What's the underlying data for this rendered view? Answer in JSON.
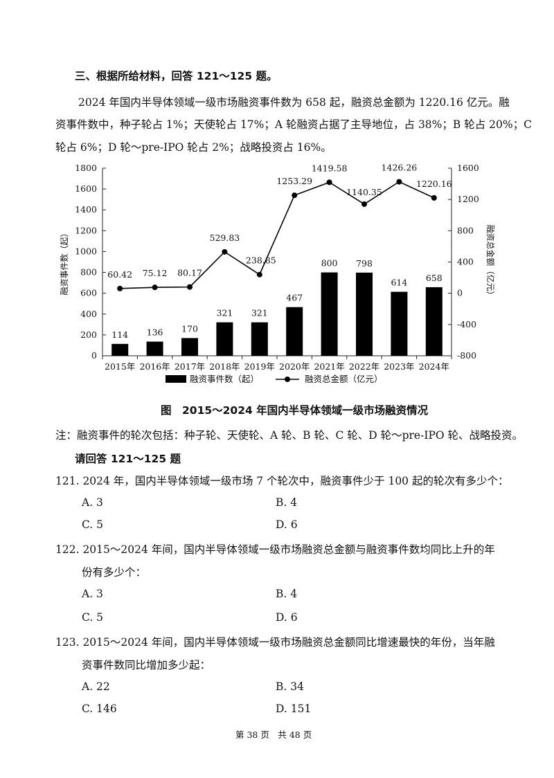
{
  "section_heading": "三、根据所给材料，回答 121～125 题。",
  "paragraph": {
    "line1": "2024 年国内半导体领域一级市场融资事件数为 658 起，融资总金额为 1220.16 亿元。融",
    "line2": "资事件数中，种子轮占 1%；天使轮占 17%；A 轮融资占据了主导地位，占 38%；B 轮占 20%；C",
    "line3": "轮占 6%；D 轮～pre-IPO 轮占 2%；战略投资占 16%。"
  },
  "chart_data": {
    "type": "bar",
    "categories": [
      "2015年",
      "2016年",
      "2017年",
      "2018年",
      "2019年",
      "2020年",
      "2021年",
      "2022年",
      "2023年",
      "2024年"
    ],
    "series": [
      {
        "name": "融资事件数（起）",
        "type": "bar",
        "axis": "left",
        "values": [
          114,
          136,
          170,
          321,
          321,
          467,
          800,
          798,
          614,
          658
        ]
      },
      {
        "name": "融资总金额（亿元）",
        "type": "line",
        "axis": "right",
        "values": [
          60.42,
          75.12,
          80.17,
          529.83,
          238.85,
          1253.29,
          1419.58,
          1140.35,
          1426.26,
          1220.16
        ]
      }
    ],
    "bar_labels": [
      "114",
      "136",
      "170",
      "321",
      "321",
      "467",
      "800",
      "798",
      "614",
      "658"
    ],
    "line_labels": [
      "60.42",
      "75.12",
      "80.17",
      "529.83",
      "238.85",
      "1253.29",
      "1419.58",
      "1140.35",
      "1426.26",
      "1220.16"
    ],
    "ylabel_left": "融资事件数（起）",
    "ylabel_right": "融资总金额（亿元）",
    "ylim_left": [
      0,
      1800
    ],
    "ylim_right": [
      -800,
      1600
    ],
    "yticks_left": [
      "0",
      "200",
      "400",
      "600",
      "800",
      "1000",
      "1200",
      "1400",
      "1600",
      "1800"
    ],
    "yticks_right": [
      "-800",
      "-400",
      "0",
      "400",
      "800",
      "1200",
      "1600"
    ],
    "legend_position": "bottom",
    "grid": false
  },
  "caption": "图　2015～2024 年国内半导体领域一级市场融资情况",
  "note": "注：融资事件的轮次包括：种子轮、天使轮、A 轮、B 轮、C 轮、D 轮～pre-IPO 轮、战略投资。",
  "prompt": "请回答 121～125 题",
  "questions": {
    "q121": {
      "text": "121. 2024 年，国内半导体领域一级市场 7 个轮次中，融资事件少于 100 起的轮次有多少个：",
      "a": "A. 3",
      "b": "B. 4",
      "c": "C. 5",
      "d": "D. 6"
    },
    "q122": {
      "line1": "122. 2015～2024 年间，国内半导体领域一级市场融资总金额与融资事件数均同比上升的年",
      "line2": "份有多少个：",
      "a": "A. 3",
      "b": "B. 4",
      "c": "C. 5",
      "d": "D. 6"
    },
    "q123": {
      "line1": "123. 2015～2024 年间，国内半导体领域一级市场融资总金额同比增速最快的年份，当年融",
      "line2": "资事件数同比增加多少起：",
      "a": "A. 22",
      "b": "B. 34",
      "c": "C. 146",
      "d": "D. 151"
    }
  },
  "footer": "第 38 页　共 48 页"
}
